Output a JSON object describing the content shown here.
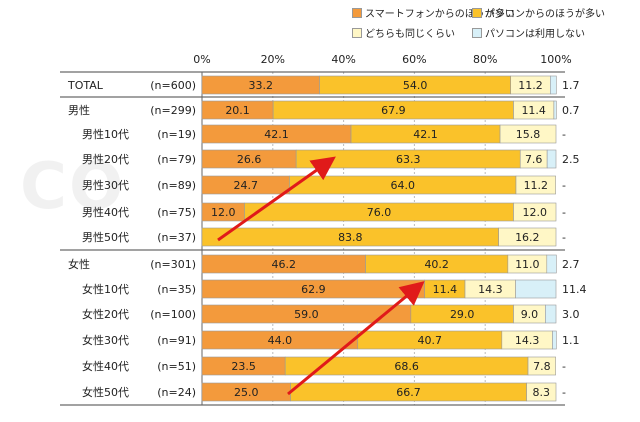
{
  "chart_data": {
    "type": "bar",
    "orientation": "horizontal",
    "stacked": "percent",
    "xlim": [
      0,
      100
    ],
    "xticks": [
      "0%",
      "20%",
      "40%",
      "60%",
      "80%",
      "100%"
    ],
    "series": [
      {
        "name": "スマートフォンからのほうが多い",
        "color": "#F39A3C"
      },
      {
        "name": "パソコンからのほうが多い",
        "color": "#FAC22A"
      },
      {
        "name": "どちらも同じくらい",
        "color": "#FFF7C6"
      },
      {
        "name": "パソコンは利用しない",
        "color": "#D8F0F8"
      }
    ],
    "rows": [
      {
        "label": "TOTAL",
        "n": "(n=600)",
        "values": [
          33.2,
          54.0,
          11.2,
          1.7
        ],
        "labels": [
          "33.2",
          "54.0",
          "11.2",
          "1.7"
        ],
        "group": true
      },
      {
        "label": "男性",
        "n": "(n=299)",
        "values": [
          20.1,
          67.9,
          11.4,
          0.7
        ],
        "labels": [
          "20.1",
          "67.9",
          "11.4",
          "0.7"
        ],
        "group": true
      },
      {
        "label": "男性10代",
        "n": "(n=19)",
        "values": [
          42.1,
          42.1,
          15.8,
          0
        ],
        "labels": [
          "42.1",
          "42.1",
          "15.8",
          "-"
        ]
      },
      {
        "label": "男性20代",
        "n": "(n=79)",
        "values": [
          26.6,
          63.3,
          7.6,
          2.5
        ],
        "labels": [
          "26.6",
          "63.3",
          "7.6",
          "2.5"
        ]
      },
      {
        "label": "男性30代",
        "n": "(n=89)",
        "values": [
          24.7,
          64.0,
          11.2,
          0
        ],
        "labels": [
          "24.7",
          "64.0",
          "11.2",
          "-"
        ]
      },
      {
        "label": "男性40代",
        "n": "(n=75)",
        "values": [
          12.0,
          76.0,
          12.0,
          0
        ],
        "labels": [
          "12.0",
          "76.0",
          "12.0",
          "-"
        ]
      },
      {
        "label": "男性50代",
        "n": "(n=37)",
        "values": [
          0,
          83.8,
          16.2,
          0
        ],
        "labels": [
          "-",
          "83.8",
          "16.2",
          "-"
        ]
      },
      {
        "label": "女性",
        "n": "(n=301)",
        "values": [
          46.2,
          40.2,
          11.0,
          2.7
        ],
        "labels": [
          "46.2",
          "40.2",
          "11.0",
          "2.7"
        ],
        "group": true
      },
      {
        "label": "女性10代",
        "n": "(n=35)",
        "values": [
          62.9,
          11.4,
          14.3,
          11.4
        ],
        "labels": [
          "62.9",
          "11.4",
          "14.3",
          "11.4"
        ]
      },
      {
        "label": "女性20代",
        "n": "(n=100)",
        "values": [
          59.0,
          29.0,
          9.0,
          3.0
        ],
        "labels": [
          "59.0",
          "29.0",
          "9.0",
          "3.0"
        ]
      },
      {
        "label": "女性30代",
        "n": "(n=91)",
        "values": [
          44.0,
          40.7,
          14.3,
          1.1
        ],
        "labels": [
          "44.0",
          "40.7",
          "14.3",
          "1.1"
        ]
      },
      {
        "label": "女性40代",
        "n": "(n=51)",
        "values": [
          23.5,
          68.6,
          7.8,
          0
        ],
        "labels": [
          "23.5",
          "68.6",
          "7.8",
          "-"
        ]
      },
      {
        "label": "女性50代",
        "n": "(n=24)",
        "values": [
          25.0,
          66.7,
          8.3,
          0
        ],
        "labels": [
          "25.0",
          "66.7",
          "8.3",
          "-"
        ]
      }
    ],
    "annotations": [
      "red-trend-arrow-male",
      "red-trend-arrow-female"
    ],
    "legend_position": "top"
  },
  "watermark": "CO"
}
